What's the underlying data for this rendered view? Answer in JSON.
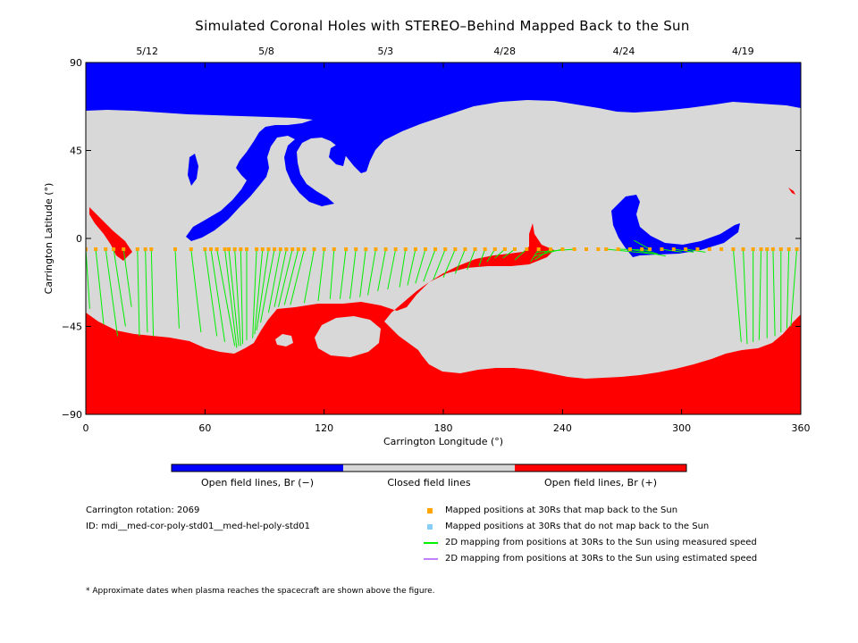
{
  "chart_data": {
    "type": "map",
    "title": "Simulated Coronal Holes with STEREO–Behind Mapped Back to the Sun",
    "xlabel": "Carrington Longitude (°)",
    "ylabel": "Carrington Latitude (°)",
    "xlim": [
      0,
      360
    ],
    "ylim": [
      -90,
      90
    ],
    "x_ticks": [
      "0",
      "60",
      "120",
      "180",
      "240",
      "300",
      "360"
    ],
    "y_ticks": [
      "−90",
      "−45",
      "0",
      "45",
      "90"
    ],
    "top_date_ticks": [
      {
        "label": "5/12",
        "lon": 30
      },
      {
        "label": "5/8",
        "lon": 90
      },
      {
        "label": "5/3",
        "lon": 150
      },
      {
        "label": "4/28",
        "lon": 210
      },
      {
        "label": "4/24",
        "lon": 270
      },
      {
        "label": "4/19",
        "lon": 330
      }
    ],
    "colors": {
      "open_negative": "#0000ff",
      "closed": "#d8d8d8",
      "open_positive": "#ff0000",
      "mapped_back": "#ffa500",
      "not_mapped_back": "#87cefa",
      "measured_speed": "#00ee00",
      "estimated_speed": "#c080ff"
    },
    "colorbar": [
      {
        "label": "Open field lines, Br (−)",
        "color": "#0000ff"
      },
      {
        "label": "Closed field lines",
        "color": "#d8d8d8"
      },
      {
        "label": "Open field lines, Br (+)",
        "color": "#ff0000"
      }
    ],
    "mapped_points": [
      [
        0,
        -5.5
      ],
      [
        5,
        -5.5
      ],
      [
        10,
        -5.5
      ],
      [
        14,
        -5.5
      ],
      [
        19,
        -5.5
      ],
      [
        26,
        -5.5
      ],
      [
        30,
        -5.5
      ],
      [
        33,
        -5.5
      ],
      [
        45,
        -5.5
      ],
      [
        53,
        -5.5
      ],
      [
        60,
        -5.5
      ],
      [
        63,
        -5.5
      ],
      [
        66,
        -5.5
      ],
      [
        70,
        -5.5
      ],
      [
        72,
        -5.5
      ],
      [
        75,
        -5.5
      ],
      [
        78,
        -5.5
      ],
      [
        81,
        -5.5
      ],
      [
        86,
        -5.5
      ],
      [
        89,
        -5.5
      ],
      [
        92,
        -5.5
      ],
      [
        95,
        -5.5
      ],
      [
        98,
        -5.5
      ],
      [
        101,
        -5.5
      ],
      [
        104,
        -5.5
      ],
      [
        107,
        -5.5
      ],
      [
        110,
        -5.5
      ],
      [
        115,
        -5.5
      ],
      [
        120,
        -5.5
      ],
      [
        125,
        -5.5
      ],
      [
        131,
        -5.5
      ],
      [
        136,
        -5.5
      ],
      [
        141,
        -5.5
      ],
      [
        146,
        -5.5
      ],
      [
        151,
        -5.5
      ],
      [
        156,
        -5.5
      ],
      [
        161,
        -5.5
      ],
      [
        166,
        -5.5
      ],
      [
        171,
        -5.5
      ],
      [
        176,
        -5.5
      ],
      [
        181,
        -5.5
      ],
      [
        186,
        -5.5
      ],
      [
        191,
        -5.5
      ],
      [
        196,
        -5.5
      ],
      [
        201,
        -5.5
      ],
      [
        206,
        -5.5
      ],
      [
        211,
        -5.5
      ],
      [
        216,
        -5.5
      ],
      [
        222,
        -5.5
      ],
      [
        228,
        -5.5
      ],
      [
        234,
        -5.5
      ],
      [
        240,
        -5.5
      ],
      [
        246,
        -5.5
      ],
      [
        252,
        -5.5
      ],
      [
        258,
        -5.5
      ],
      [
        262,
        -5.5
      ],
      [
        268,
        -5.5
      ],
      [
        274,
        -5.5
      ],
      [
        280,
        -5.5
      ],
      [
        284,
        -5.5
      ],
      [
        290,
        -5.5
      ],
      [
        296,
        -5.5
      ],
      [
        302,
        -5.5
      ],
      [
        308,
        -5.5
      ],
      [
        314,
        -5.5
      ],
      [
        320,
        -5.5
      ],
      [
        326,
        -5.5
      ],
      [
        331,
        -5.5
      ],
      [
        336,
        -5.5
      ],
      [
        340,
        -5.5
      ],
      [
        343,
        -5.5
      ],
      [
        346,
        -5.5
      ],
      [
        350,
        -5.5
      ],
      [
        354,
        -5.5
      ],
      [
        358,
        -5.5
      ]
    ],
    "mapping_lines": [
      [
        0,
        -5.5,
        2,
        -36
      ],
      [
        5,
        -5.5,
        9,
        -44
      ],
      [
        10,
        -5.5,
        16,
        -50
      ],
      [
        14,
        -5.5,
        20,
        -45
      ],
      [
        19,
        -5.5,
        23,
        -35
      ],
      [
        26,
        -5.5,
        27,
        -50
      ],
      [
        30,
        -5.5,
        31,
        -48
      ],
      [
        33,
        -5.5,
        34,
        -50
      ],
      [
        45,
        -5.5,
        47,
        -46
      ],
      [
        53,
        -5.5,
        58,
        -48
      ],
      [
        60,
        -5.5,
        66,
        -50
      ],
      [
        63,
        -5.5,
        70,
        -53
      ],
      [
        66,
        -5.5,
        75,
        -55
      ],
      [
        70,
        -5.5,
        76,
        -56
      ],
      [
        72,
        -5.5,
        77,
        -55
      ],
      [
        75,
        -5.5,
        78,
        -55
      ],
      [
        78,
        -5.5,
        79,
        -54
      ],
      [
        81,
        -5.5,
        81,
        -52
      ],
      [
        86,
        -5.5,
        84,
        -51
      ],
      [
        89,
        -5.5,
        85,
        -49
      ],
      [
        92,
        -5.5,
        86,
        -47
      ],
      [
        95,
        -5.5,
        88,
        -43
      ],
      [
        98,
        -5.5,
        92,
        -38
      ],
      [
        101,
        -5.5,
        95,
        -35
      ],
      [
        104,
        -5.5,
        97,
        -35
      ],
      [
        107,
        -5.5,
        100,
        -34
      ],
      [
        110,
        -5.5,
        103,
        -34
      ],
      [
        115,
        -5.5,
        110,
        -33
      ],
      [
        120,
        -5.5,
        117,
        -32
      ],
      [
        125,
        -5.5,
        123,
        -31
      ],
      [
        131,
        -5.5,
        128,
        -31
      ],
      [
        136,
        -5.5,
        133,
        -31
      ],
      [
        141,
        -5.5,
        138,
        -30
      ],
      [
        146,
        -5.5,
        142,
        -29
      ],
      [
        151,
        -5.5,
        147,
        -27
      ],
      [
        156,
        -5.5,
        152,
        -26
      ],
      [
        161,
        -5.5,
        158,
        -25
      ],
      [
        166,
        -5.5,
        162,
        -24
      ],
      [
        171,
        -5.5,
        166,
        -23
      ],
      [
        176,
        -5.5,
        170,
        -22
      ],
      [
        181,
        -5.5,
        175,
        -21
      ],
      [
        186,
        -5.5,
        180,
        -20
      ],
      [
        191,
        -5.5,
        186,
        -18
      ],
      [
        196,
        -5.5,
        192,
        -16
      ],
      [
        201,
        -5.5,
        198,
        -14
      ],
      [
        206,
        -5.5,
        202,
        -12
      ],
      [
        211,
        -5.5,
        206,
        -10
      ],
      [
        216,
        -5.5,
        210,
        -10
      ],
      [
        222,
        -5.5,
        216,
        -11
      ],
      [
        228,
        -5.5,
        224,
        -12
      ],
      [
        234,
        -5.5,
        226,
        -11
      ],
      [
        240,
        -5.5,
        226,
        -9
      ],
      [
        246,
        -5.5,
        227,
        -7
      ],
      [
        262,
        -5.5,
        287,
        -8
      ],
      [
        268,
        -5.5,
        284,
        -6
      ],
      [
        274,
        -5.5,
        292,
        -9
      ],
      [
        280,
        -5.5,
        288,
        -8
      ],
      [
        284,
        -5.5,
        276,
        -1
      ],
      [
        290,
        -5.5,
        300,
        -7
      ],
      [
        296,
        -5.5,
        306,
        -7
      ],
      [
        302,
        -5.5,
        312,
        -7
      ],
      [
        326,
        -5.5,
        330,
        -53
      ],
      [
        331,
        -5.5,
        333,
        -54
      ],
      [
        336,
        -5.5,
        336,
        -53
      ],
      [
        340,
        -5.5,
        339,
        -52
      ],
      [
        343,
        -5.5,
        343,
        -51
      ],
      [
        346,
        -5.5,
        347,
        -50
      ],
      [
        350,
        -5.5,
        350,
        -48
      ],
      [
        354,
        -5.5,
        353,
        -46
      ],
      [
        358,
        -5.5,
        355,
        -45
      ]
    ]
  },
  "info": {
    "carrington_rotation": "Carrington rotation: 2069",
    "id": "ID: mdi__med-cor-poly-std01__med-hel-poly-std01"
  },
  "legend": [
    {
      "kind": "square",
      "color": "#ffa500",
      "label": "Mapped positions at 30Rs that map back to the Sun"
    },
    {
      "kind": "square",
      "color": "#87cefa",
      "label": "Mapped positions at 30Rs that do not map back to the Sun"
    },
    {
      "kind": "line",
      "color": "#00ee00",
      "label": "2D mapping from positions at 30Rs to the Sun using measured speed"
    },
    {
      "kind": "line",
      "color": "#c080ff",
      "label": "2D mapping from positions at 30Rs to the Sun using estimated speed"
    }
  ],
  "footnote": "* Approximate dates when plasma reaches the spacecraft are shown above the figure."
}
